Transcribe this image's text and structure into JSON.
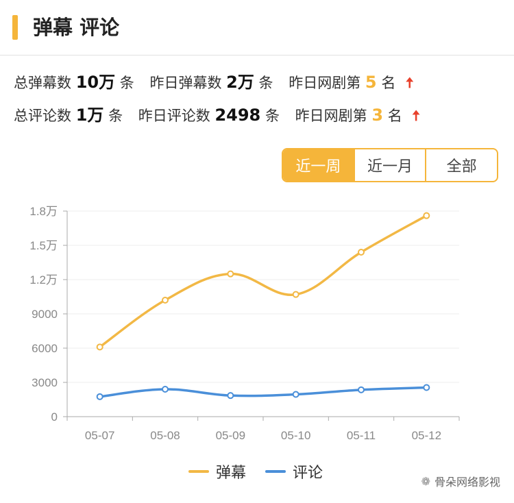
{
  "header": {
    "title": "弹幕 评论"
  },
  "stats": {
    "row1": {
      "label1": "总弹幕数",
      "value1": "10万",
      "unit1": "条",
      "label2": "昨日弹幕数",
      "value2": "2万",
      "unit2": "条",
      "label3": "昨日网剧第",
      "rank": "5",
      "unit3": "名",
      "arrow": "🠅"
    },
    "row2": {
      "label1": "总评论数",
      "value1": "1万",
      "unit1": "条",
      "label2": "昨日评论数",
      "value2": "2498",
      "unit2": "条",
      "label3": "昨日网剧第",
      "rank": "3",
      "unit3": "名",
      "arrow": "🠅"
    }
  },
  "tabs": [
    {
      "label": "近一周",
      "active": true
    },
    {
      "label": "近一月",
      "active": false
    },
    {
      "label": "全部",
      "active": false
    }
  ],
  "chart_data": {
    "type": "line",
    "categories": [
      "05-07",
      "05-08",
      "05-09",
      "05-10",
      "05-11",
      "05-12"
    ],
    "series": [
      {
        "name": "弹幕",
        "color": "#f2b845",
        "values": [
          6100,
          10200,
          12500,
          10700,
          14400,
          17600
        ]
      },
      {
        "name": "评论",
        "color": "#4a8fd9",
        "values": [
          1750,
          2400,
          1850,
          1950,
          2350,
          2550
        ]
      }
    ],
    "yticks": [
      0,
      3000,
      6000,
      9000,
      12000,
      15000,
      18000
    ],
    "ytick_labels": [
      "0",
      "3000",
      "6000",
      "9000",
      "1.2万",
      "1.5万",
      "1.8万"
    ],
    "ylim": [
      0,
      18000
    ],
    "grid": true,
    "legend_position": "bottom"
  },
  "watermark": "骨朵网络影视"
}
